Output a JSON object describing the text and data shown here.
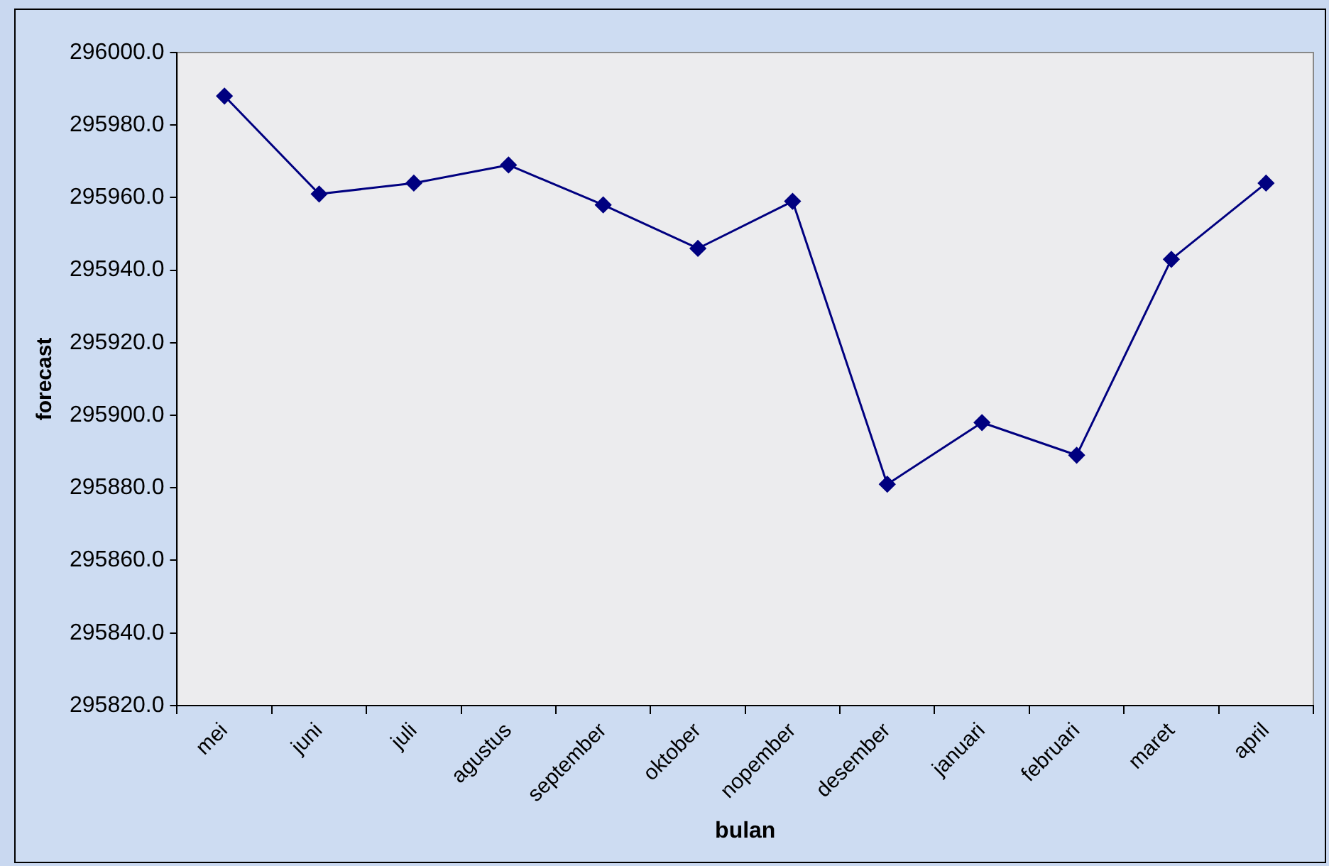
{
  "chart_data": {
    "type": "line",
    "xlabel": "bulan",
    "ylabel": "forecast",
    "categories": [
      "mei",
      "juni",
      "juli",
      "agustus",
      "september",
      "oktober",
      "nopember",
      "desember",
      "januari",
      "februari",
      "maret",
      "april"
    ],
    "series": [
      {
        "color": "#000080",
        "values": [
          295988,
          295961,
          295964,
          295969,
          295958,
          295946,
          295959,
          295881,
          295898,
          295889,
          295943,
          295964
        ]
      }
    ],
    "ylim": [
      295820,
      296000
    ],
    "yticks": [
      {
        "value": 295820,
        "label": "295820.0"
      },
      {
        "value": 295840,
        "label": "295840.0"
      },
      {
        "value": 295860,
        "label": "295860.0"
      },
      {
        "value": 295880,
        "label": "295880.0"
      },
      {
        "value": 295900,
        "label": "295900.0"
      },
      {
        "value": 295920,
        "label": "295920.0"
      },
      {
        "value": 295940,
        "label": "295940.0"
      },
      {
        "value": 295960,
        "label": "295960.0"
      },
      {
        "value": 295980,
        "label": "295980.0"
      },
      {
        "value": 296000,
        "label": "296000.0"
      }
    ],
    "grid": false,
    "legend": false,
    "marker": "diamond",
    "line_style": "solid"
  }
}
